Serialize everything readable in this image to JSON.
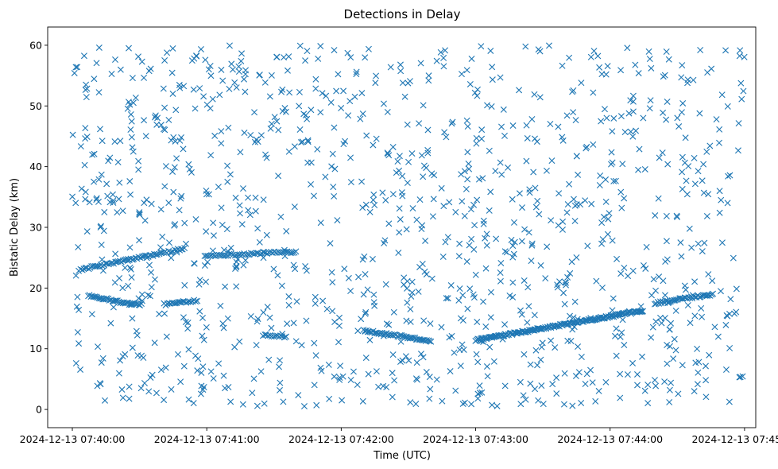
{
  "chart_data": {
    "type": "scatter",
    "title": "Detections in Delay",
    "xlabel": "Time (UTC)",
    "ylabel": "Bistatic Delay (km)",
    "x_ticks": [
      {
        "value": 0,
        "label": "2024-12-13 07:40:00"
      },
      {
        "value": 60,
        "label": "2024-12-13 07:41:00"
      },
      {
        "value": 120,
        "label": "2024-12-13 07:42:00"
      },
      {
        "value": 180,
        "label": "2024-12-13 07:43:00"
      },
      {
        "value": 240,
        "label": "2024-12-13 07:44:00"
      },
      {
        "value": 300,
        "label": "2024-12-13 07:45:00"
      }
    ],
    "y_ticks": [
      0,
      10,
      20,
      30,
      40,
      50,
      60
    ],
    "xlim": [
      -11,
      305
    ],
    "ylim": [
      -3,
      63
    ],
    "grid": false,
    "marker": "x",
    "color": "#1f77b4",
    "tracks": [
      {
        "x": [
          3,
          50
        ],
        "y": [
          23,
          26.5
        ],
        "step": 0.7
      },
      {
        "x": [
          59,
          100
        ],
        "y": [
          25.3,
          26
        ],
        "step": 0.8
      },
      {
        "x": [
          7,
          23
        ],
        "y": [
          18.8,
          17.6
        ],
        "step": 0.6
      },
      {
        "x": [
          23,
          31
        ],
        "y": [
          17.5,
          17.3
        ],
        "step": 0.6
      },
      {
        "x": [
          41,
          56
        ],
        "y": [
          17.3,
          18
        ],
        "step": 0.7
      },
      {
        "x": [
          85,
          96
        ],
        "y": [
          12.3,
          12
        ],
        "step": 0.8
      },
      {
        "x": [
          130,
          160
        ],
        "y": [
          13,
          11.3
        ],
        "step": 0.6
      },
      {
        "x": [
          180,
          255
        ],
        "y": [
          11.4,
          16.3
        ],
        "step": 0.45
      },
      {
        "x": [
          260,
          286
        ],
        "y": [
          17.5,
          19
        ],
        "step": 0.6
      }
    ],
    "clutter_points": 1150,
    "x_range": [
      0,
      300
    ],
    "y_range": [
      0.5,
      60
    ]
  }
}
